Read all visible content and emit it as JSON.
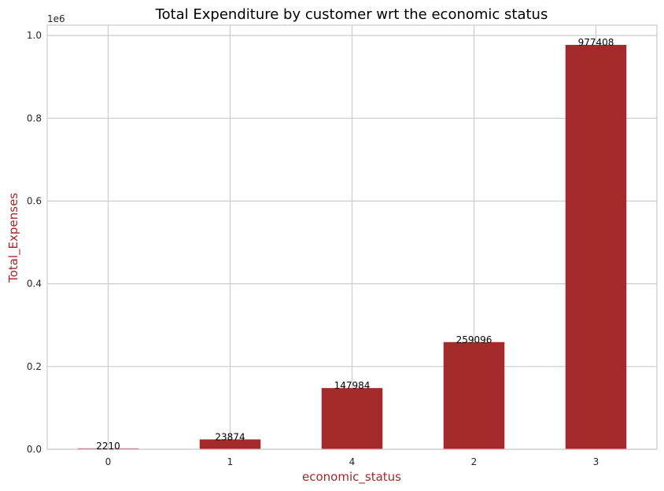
{
  "chart_data": {
    "type": "bar",
    "title": "Total Expenditure by customer wrt the economic status",
    "xlabel": "economic_status",
    "ylabel": "Total_Expenses",
    "categories": [
      "0",
      "1",
      "4",
      "2",
      "3"
    ],
    "values": [
      2210,
      23874,
      147984,
      259096,
      977408
    ],
    "data_labels": [
      "2210",
      "23874",
      "147984",
      "259096",
      "977408"
    ],
    "ylim": [
      0,
      1025000
    ],
    "y_ticks": [
      0,
      200000,
      400000,
      600000,
      800000,
      1000000
    ],
    "y_tick_labels": [
      "0.0",
      "0.2",
      "0.4",
      "0.6",
      "0.8",
      "1.0"
    ],
    "y_offset_label": "1e6",
    "grid": true,
    "colors": {
      "bar": "#a3292a",
      "axis_label": "#a3292a",
      "grid": "#cccccc",
      "frame": "#cccccc"
    }
  }
}
